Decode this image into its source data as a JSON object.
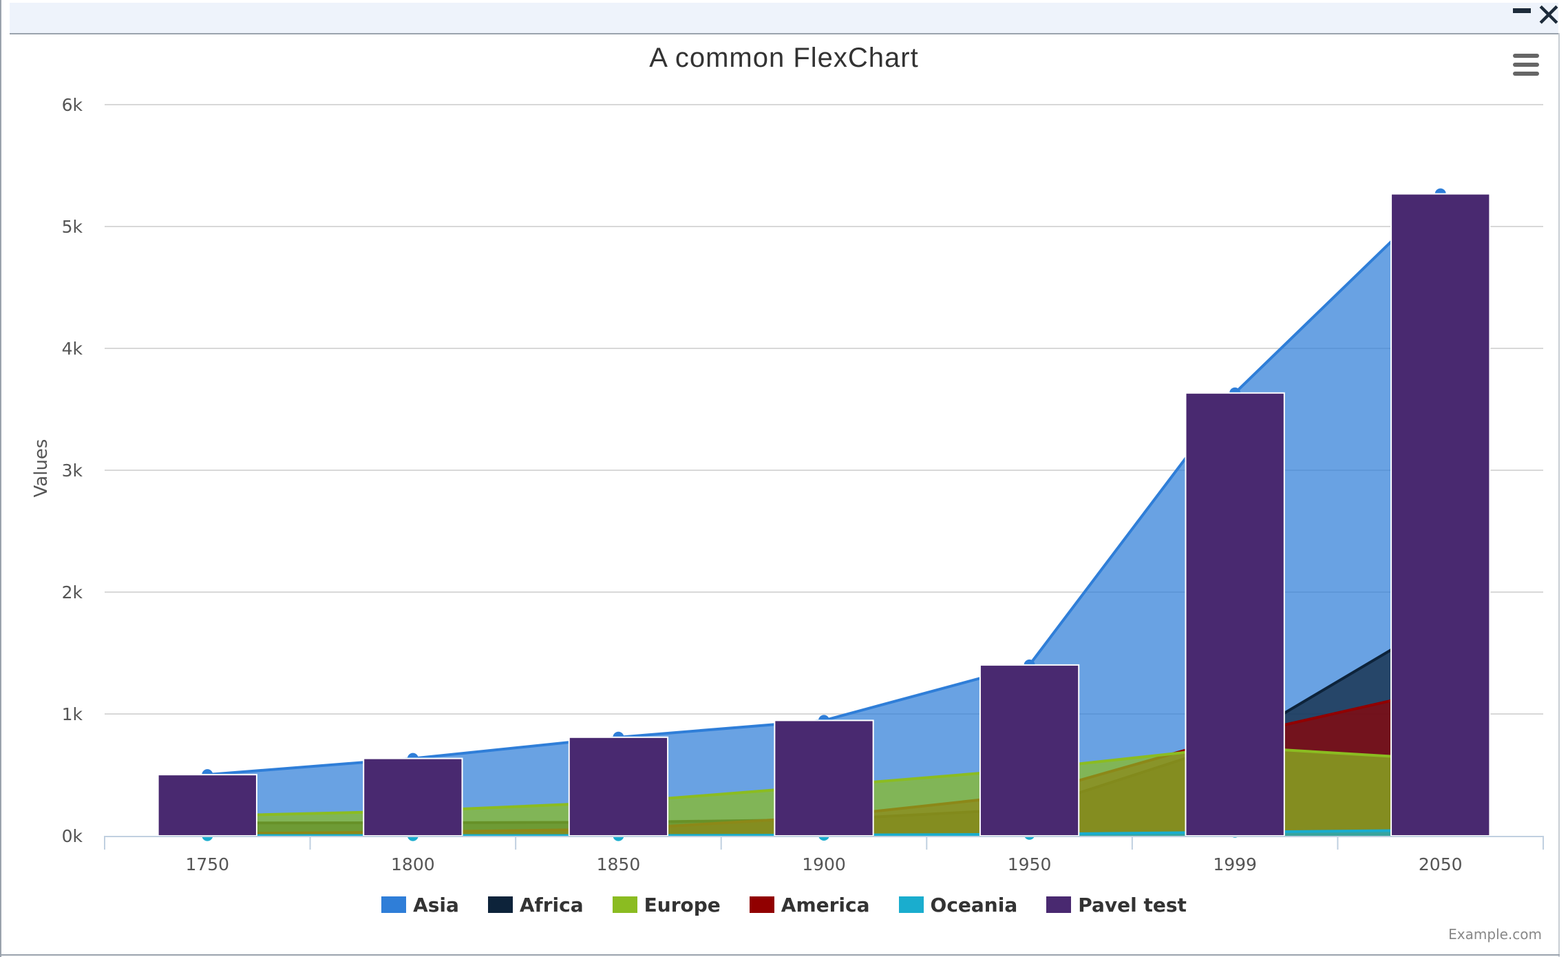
{
  "window": {
    "minimize_label": "",
    "close_label": "✕"
  },
  "chart_data": {
    "type": "area",
    "title": "A common FlexChart",
    "xlabel": "",
    "ylabel": "Values",
    "categories": [
      "1750",
      "1800",
      "1850",
      "1900",
      "1950",
      "1999",
      "2050"
    ],
    "y_ticks": [
      "0k",
      "1k",
      "2k",
      "3k",
      "4k",
      "5k",
      "6k"
    ],
    "ylim": [
      0,
      6000
    ],
    "grid": true,
    "legend_position": "bottom",
    "stacked_areas": true,
    "series": [
      {
        "name": "Asia",
        "type": "area",
        "color": "#2f7ed8",
        "values": [
          502,
          635,
          809,
          947,
          1402,
          3634,
          5268
        ]
      },
      {
        "name": "Africa",
        "type": "area",
        "color": "#0d233a",
        "values": [
          106,
          107,
          111,
          133,
          221,
          767,
          1766
        ]
      },
      {
        "name": "Europe",
        "type": "area",
        "color": "#8bbc21",
        "values": [
          163,
          203,
          276,
          408,
          547,
          729,
          628
        ]
      },
      {
        "name": "America",
        "type": "area",
        "color": "#910000",
        "values": [
          18,
          31,
          54,
          156,
          339,
          818,
          1201
        ]
      },
      {
        "name": "Oceania",
        "type": "area",
        "color": "#1aadce",
        "values": [
          2,
          2,
          2,
          6,
          13,
          30,
          46
        ]
      },
      {
        "name": "Pavel test",
        "type": "column",
        "color": "#492970",
        "values": [
          502,
          635,
          809,
          947,
          1402,
          3634,
          5268
        ]
      }
    ]
  },
  "menu": {
    "icon": "hamburger-menu-icon"
  },
  "credits": "Example.com"
}
